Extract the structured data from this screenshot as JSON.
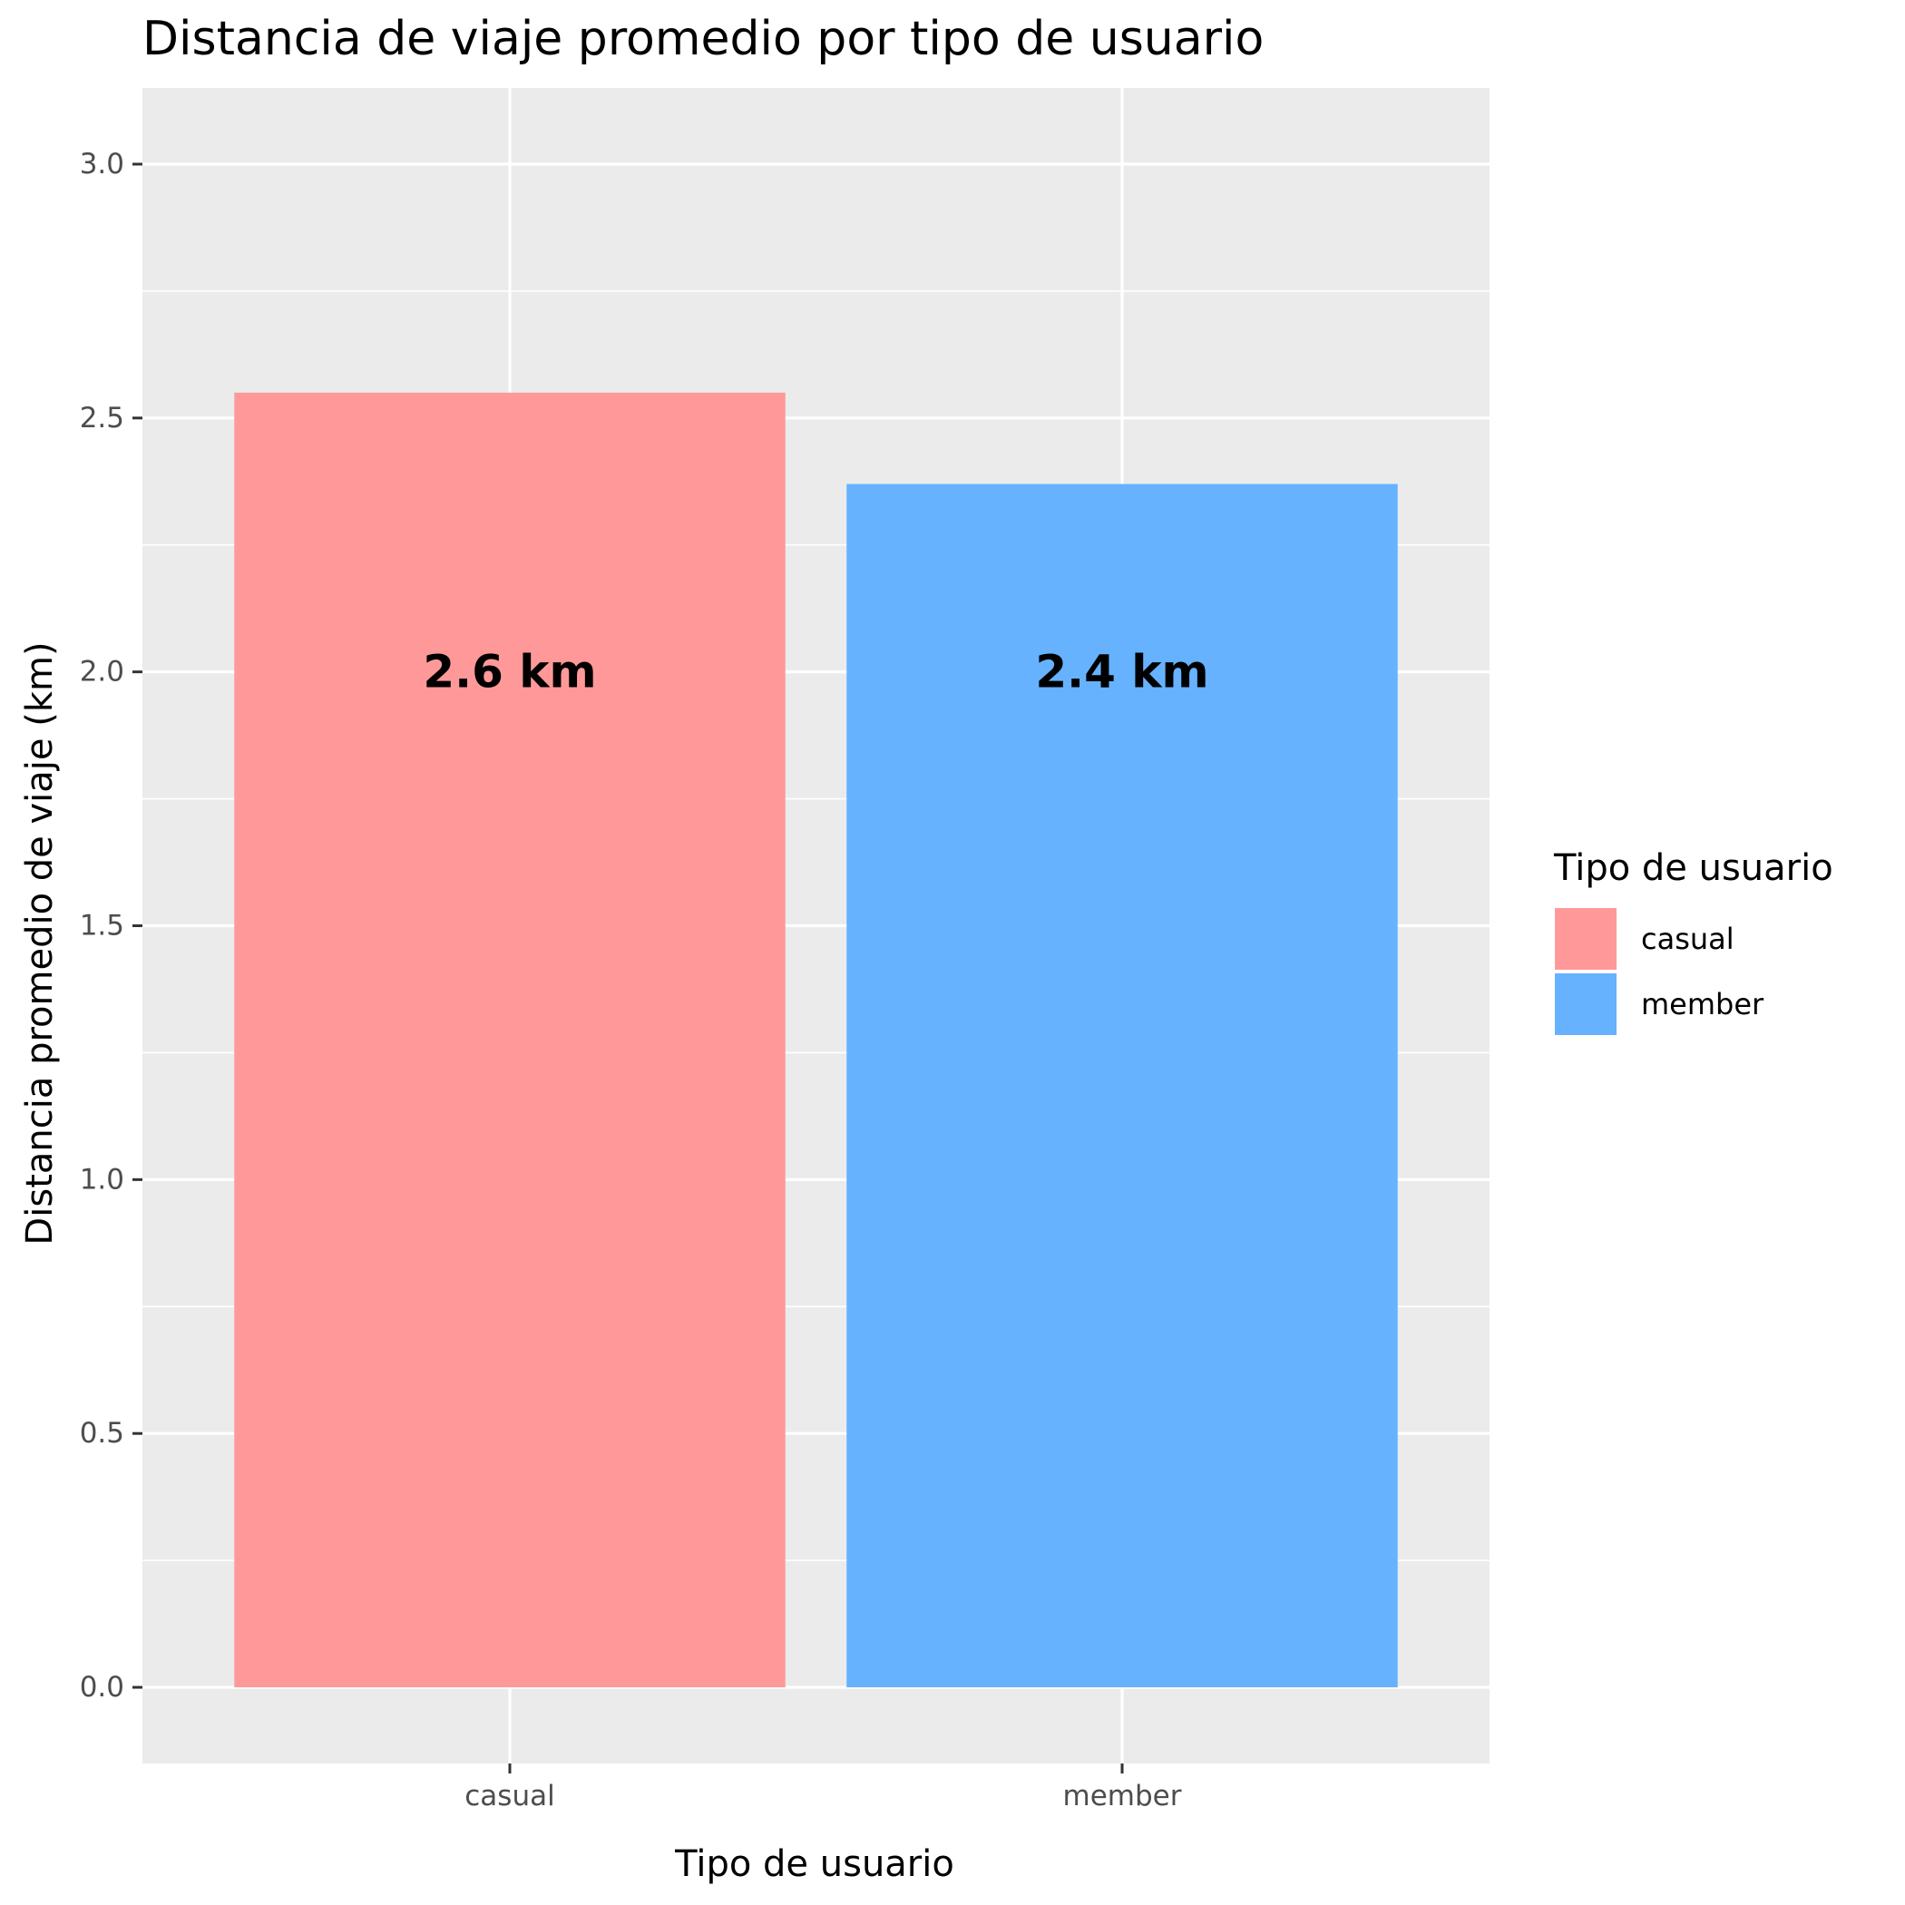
{
  "chart_data": {
    "type": "bar",
    "title": "Distancia de viaje promedio por tipo de usuario",
    "xlabel": "Tipo de usuario",
    "ylabel": "Distancia promedio de viaje (km)",
    "categories": [
      "casual",
      "member"
    ],
    "values": [
      2.55,
      2.37
    ],
    "data_labels": [
      "2.6 km",
      "2.4 km"
    ],
    "label_y": 2.0,
    "colors": [
      "#ff9999",
      "#66b2ff"
    ],
    "ylim": [
      -0.15,
      3.15
    ],
    "yticks": [
      0.0,
      0.5,
      1.0,
      1.5,
      2.0,
      2.5,
      3.0
    ],
    "ytick_labels": [
      "0.0",
      "0.5",
      "1.0",
      "1.5",
      "2.0",
      "2.5",
      "3.0"
    ],
    "grid": true,
    "legend": {
      "title": "Tipo de usuario",
      "position": "right",
      "entries": [
        "casual",
        "member"
      ]
    },
    "panel_background": "#ebebeb",
    "grid_color": "#ffffff"
  }
}
